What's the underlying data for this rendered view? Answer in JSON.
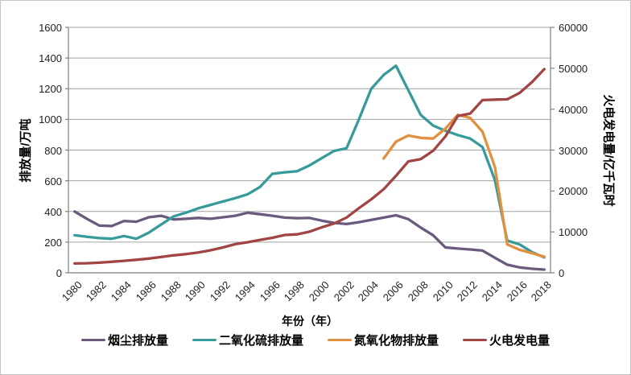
{
  "figure": {
    "background": "#ffffff",
    "border_color": "#c6c6c6"
  },
  "chart_data": {
    "type": "line",
    "title": "",
    "x_axis_title": "年份（年）",
    "x_tick_interval": 2,
    "grid": true,
    "gridline_color": "#a3a3a3",
    "axis_line_color": "#7f7f7f",
    "legend_position": "bottom",
    "y_left": {
      "label": "排放量/万吨",
      "min": 0,
      "max": 1600,
      "step": 200
    },
    "y_right": {
      "label": "火电发电量/亿千瓦时",
      "min": 0,
      "max": 60000,
      "step": 10000
    },
    "x": [
      1980,
      1981,
      1982,
      1983,
      1984,
      1985,
      1986,
      1987,
      1988,
      1989,
      1990,
      1991,
      1992,
      1993,
      1994,
      1995,
      1996,
      1997,
      1998,
      1999,
      2000,
      2001,
      2002,
      2003,
      2004,
      2005,
      2006,
      2007,
      2008,
      2009,
      2010,
      2011,
      2012,
      2013,
      2014,
      2015,
      2016,
      2017,
      2018
    ],
    "series": [
      {
        "key": "dust-emissions",
        "name": "烟尘排放量",
        "color": "#6A5A7C",
        "axis": "left",
        "values": [
          400,
          352,
          308,
          305,
          338,
          333,
          362,
          372,
          348,
          352,
          358,
          352,
          362,
          372,
          392,
          382,
          372,
          360,
          356,
          358,
          340,
          325,
          318,
          330,
          345,
          360,
          375,
          350,
          295,
          245,
          165,
          158,
          152,
          145,
          98,
          53,
          35,
          26,
          21
        ]
      },
      {
        "key": "so2-emissions",
        "name": "二氧化硫排放量",
        "color": "#379A9B",
        "axis": "left",
        "values": [
          245,
          235,
          226,
          222,
          240,
          222,
          262,
          315,
          368,
          392,
          420,
          443,
          465,
          487,
          512,
          560,
          645,
          655,
          662,
          700,
          748,
          795,
          812,
          1000,
          1200,
          1290,
          1350,
          1190,
          1030,
          960,
          926,
          898,
          875,
          820,
          605,
          210,
          185,
          135,
          100
        ]
      },
      {
        "key": "nox-emissions",
        "name": "氮氧化物排放量",
        "color": "#E0913F",
        "axis": "left",
        "values": [
          null,
          null,
          null,
          null,
          null,
          null,
          null,
          null,
          null,
          null,
          null,
          null,
          null,
          null,
          null,
          null,
          null,
          null,
          null,
          null,
          null,
          null,
          null,
          null,
          null,
          745,
          855,
          895,
          880,
          875,
          940,
          1030,
          1010,
          920,
          690,
          185,
          150,
          128,
          105
        ]
      },
      {
        "key": "thermal-power-generation",
        "name": "火电发电量",
        "color": "#A04543",
        "axis": "right",
        "values": [
          2290,
          2340,
          2480,
          2700,
          2930,
          3180,
          3490,
          3850,
          4270,
          4570,
          4950,
          5500,
          6200,
          7000,
          7470,
          8040,
          8560,
          9250,
          9400,
          10050,
          11140,
          12050,
          13520,
          15790,
          17960,
          20440,
          23700,
          27230,
          27790,
          29830,
          33320,
          38340,
          38930,
          42220,
          42340,
          42420,
          43960,
          46630,
          49790
        ]
      }
    ]
  }
}
